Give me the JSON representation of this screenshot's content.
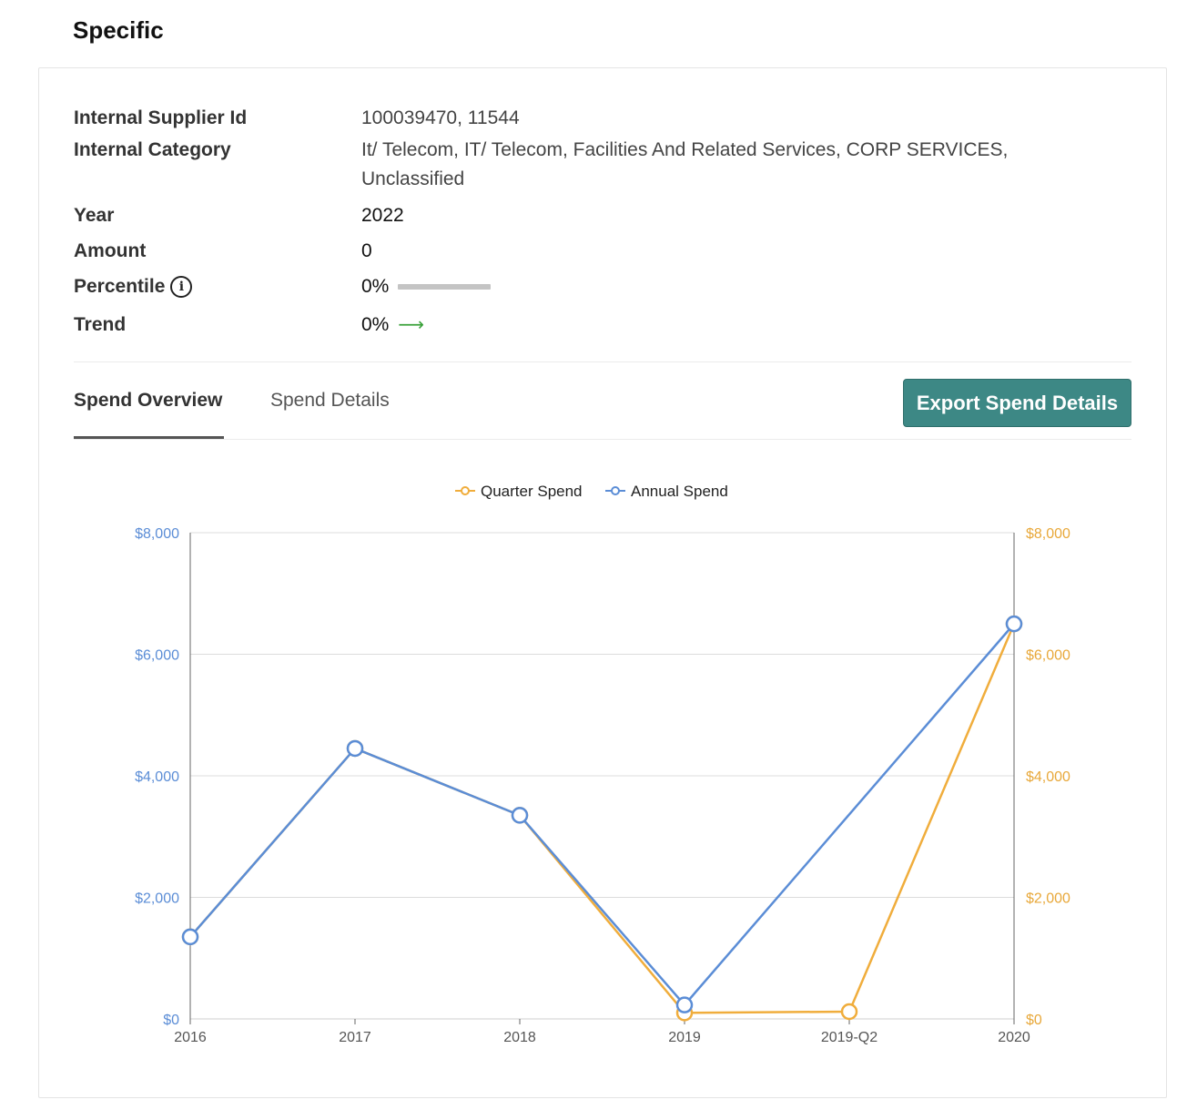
{
  "page": {
    "title": "Specific"
  },
  "info": {
    "supplier_id_label": "Internal Supplier Id",
    "supplier_id_value": "100039470, 11544",
    "category_label": "Internal Category",
    "category_value": "It/ Telecom, IT/ Telecom, Facilities And Related Services, CORP SERVICES, Unclassified",
    "year_label": "Year",
    "year_value": "2022",
    "amount_label": "Amount",
    "amount_value": "0",
    "percentile_label": "Percentile",
    "percentile_icon": "info-icon",
    "percentile_value": "0%",
    "percentile_fraction": 0,
    "trend_label": "Trend",
    "trend_value": "0%",
    "trend_icon": "arrow-right-icon",
    "trend_color": "#3aa13a"
  },
  "tabs": [
    {
      "label": "Spend Overview",
      "active": true
    },
    {
      "label": "Spend Details",
      "active": false
    }
  ],
  "export_button": {
    "label": "Export Spend Details",
    "color": "#3d8885"
  },
  "chart_data": {
    "type": "line",
    "title": "",
    "categories": [
      "2016",
      "2017",
      "2018",
      "2019",
      "2019-Q2",
      "2020"
    ],
    "series": [
      {
        "name": "Quarter Spend",
        "color": "#f0ad3c",
        "axis": "right",
        "points": [
          [
            0,
            1350
          ],
          [
            1,
            4450
          ],
          [
            2,
            3350
          ],
          [
            3,
            100
          ],
          [
            4,
            120
          ],
          [
            5,
            6500
          ]
        ]
      },
      {
        "name": "Annual Spend",
        "color": "#5b8dd6",
        "axis": "left",
        "points": [
          [
            0,
            1350
          ],
          [
            1,
            4450
          ],
          [
            2,
            3350
          ],
          [
            3,
            230
          ],
          [
            5,
            6500
          ]
        ]
      }
    ],
    "y_left": {
      "min": 0,
      "max": 8000,
      "ticks": [
        "$0",
        "$2,000",
        "$4,000",
        "$6,000",
        "$8,000"
      ],
      "tick_values": [
        0,
        2000,
        4000,
        6000,
        8000
      ],
      "color": "#5b8dd6"
    },
    "y_right": {
      "min": 0,
      "max": 8000,
      "ticks": [
        "$0",
        "$2,000",
        "$4,000",
        "$6,000",
        "$8,000"
      ],
      "tick_values": [
        0,
        2000,
        4000,
        6000,
        8000
      ],
      "color": "#e8a83a"
    },
    "grid": true,
    "legend": "top-center"
  }
}
